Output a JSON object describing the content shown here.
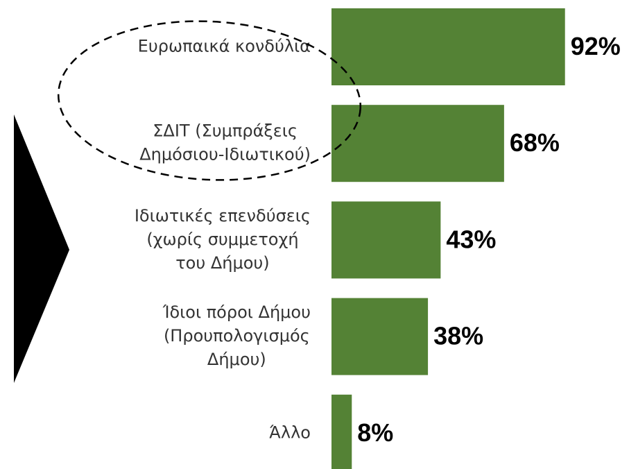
{
  "chart_data": {
    "type": "bar",
    "orientation": "horizontal",
    "categories": [
      [
        "Ευρωπαικά κονδύλια"
      ],
      [
        "ΣΔΙΤ (Συμπράξεις",
        "Δημόσιου-Ιδιωτικού)"
      ],
      [
        "Ιδιωτικές επενδύσεις",
        "(χωρίς συμμετοχή",
        "του Δήμου)"
      ],
      [
        "Ίδιοι πόροι Δήμου",
        "(Προυπολογισμός",
        "Δήμου)"
      ],
      [
        "Άλλο"
      ]
    ],
    "values": [
      92,
      68,
      43,
      38,
      8
    ],
    "value_labels": [
      "92%",
      "68%",
      "43%",
      "38%",
      "8%"
    ],
    "color": "#548235"
  }
}
